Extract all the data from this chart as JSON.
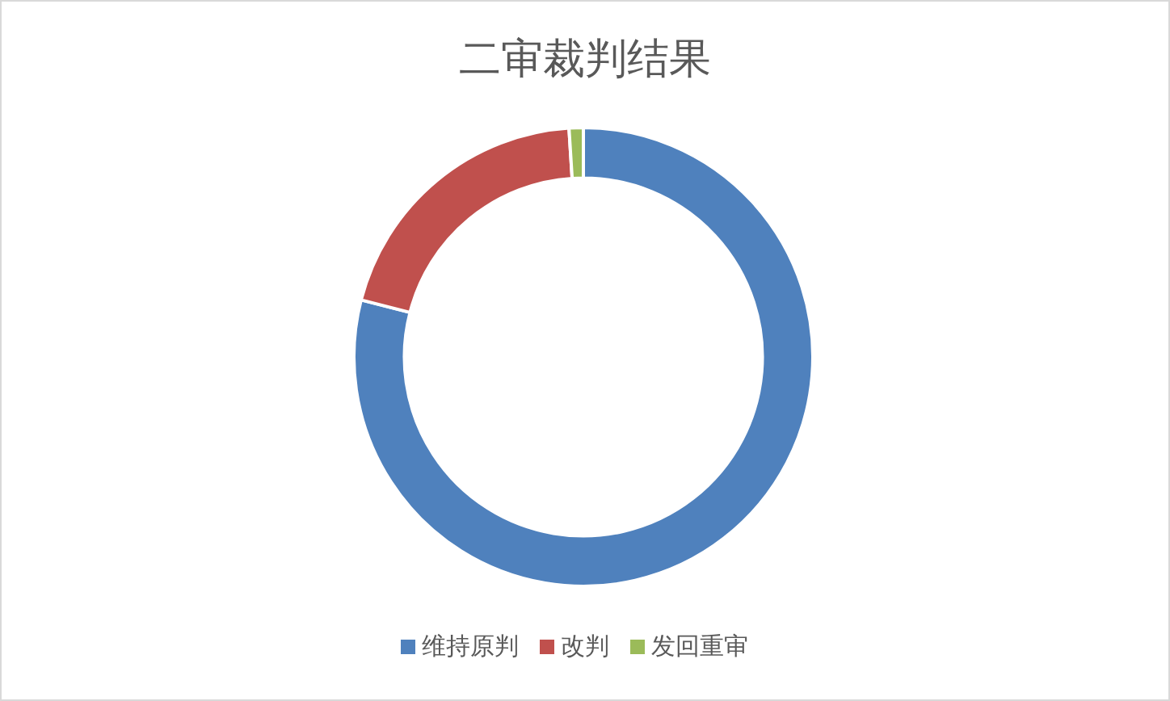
{
  "chart_data": {
    "type": "donut",
    "title": "二审裁判结果",
    "categories": [
      "维持原判",
      "改判",
      "发回重审"
    ],
    "values": [
      79,
      20,
      1
    ],
    "colors": [
      "#4f81bd",
      "#c0504d",
      "#9bbb59"
    ],
    "legend": "bottom"
  }
}
